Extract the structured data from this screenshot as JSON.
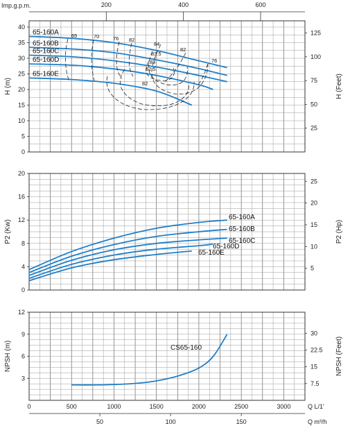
{
  "chart_data": [
    {
      "type": "line",
      "panel": "head",
      "top_axis": {
        "label": "Imp.g.p.m.",
        "ticks": [
          200,
          400,
          600
        ],
        "range": [
          0,
          715
        ]
      },
      "y_left": {
        "label": "H (m)",
        "ticks": [
          0,
          5,
          10,
          15,
          20,
          25,
          30,
          35,
          40
        ],
        "range": [
          0,
          42
        ]
      },
      "y_right": {
        "label": "H (Feet)",
        "ticks": [
          25,
          50,
          75,
          100,
          125
        ],
        "range": [
          0,
          137.8
        ]
      },
      "x_range": [
        0,
        3250
      ],
      "grid": true,
      "series": [
        {
          "name": "65-160A",
          "x": [
            0,
            500,
            1000,
            1500,
            2000,
            2333
          ],
          "y": [
            37,
            36.4,
            35,
            32.5,
            29.2,
            27
          ],
          "color": "#1f7fc9"
        },
        {
          "name": "65-160B",
          "x": [
            0,
            500,
            1000,
            1500,
            2000,
            2333
          ],
          "y": [
            33.5,
            33,
            31.8,
            29.5,
            26.7,
            24.5
          ],
          "color": "#1f7fc9"
        },
        {
          "name": "65-160C",
          "x": [
            0,
            500,
            1000,
            1500,
            2000,
            2333
          ],
          "y": [
            31,
            30.5,
            29.2,
            27.2,
            24.5,
            22.5
          ],
          "color": "#1f7fc9"
        },
        {
          "name": "65-160D",
          "x": [
            0,
            500,
            1000,
            1500,
            2000,
            2167
          ],
          "y": [
            28.2,
            27.8,
            26.6,
            24.5,
            21.5,
            20
          ],
          "color": "#1f7fc9"
        },
        {
          "name": "65-160E",
          "x": [
            0,
            500,
            1000,
            1500,
            1917
          ],
          "y": [
            23.7,
            23.2,
            22,
            19.5,
            15
          ],
          "color": "#1f7fc9"
        }
      ],
      "efficiency_labels": [
        "65",
        "70",
        "76",
        "82",
        "84",
        "83.5",
        "83",
        "82.5",
        "82",
        "82",
        "76"
      ]
    },
    {
      "type": "line",
      "panel": "power",
      "y_left": {
        "label": "P2 (Kw)",
        "ticks": [
          0,
          4,
          8,
          12,
          16,
          20
        ],
        "range": [
          0,
          20
        ]
      },
      "y_right": {
        "label": "P2 (Hp)",
        "ticks": [
          5,
          10,
          15,
          20,
          25
        ],
        "range": [
          0,
          26.8
        ]
      },
      "x_range": [
        0,
        3250
      ],
      "grid": true,
      "series": [
        {
          "name": "65-160A",
          "x": [
            0,
            500,
            1000,
            1500,
            2000,
            2333
          ],
          "y": [
            3.5,
            6.6,
            8.9,
            10.6,
            11.6,
            12.0
          ],
          "color": "#1f7fc9"
        },
        {
          "name": "65-160B",
          "x": [
            0,
            500,
            1000,
            1500,
            2000,
            2333
          ],
          "y": [
            3.0,
            5.8,
            7.8,
            9.2,
            10.0,
            10.4
          ],
          "color": "#1f7fc9"
        },
        {
          "name": "65-160C",
          "x": [
            0,
            500,
            1000,
            1500,
            2000,
            2333
          ],
          "y": [
            2.5,
            5.1,
            6.9,
            8.0,
            8.6,
            8.9
          ],
          "color": "#1f7fc9"
        },
        {
          "name": "65-160D",
          "x": [
            0,
            500,
            1000,
            1500,
            2000,
            2167
          ],
          "y": [
            2.0,
            4.4,
            6.0,
            7.0,
            7.6,
            7.9
          ],
          "color": "#1f7fc9"
        },
        {
          "name": "65-160E",
          "x": [
            0,
            500,
            1000,
            1500,
            1917
          ],
          "y": [
            1.6,
            3.8,
            5.2,
            6.1,
            6.7
          ],
          "color": "#1f7fc9"
        }
      ]
    },
    {
      "type": "line",
      "panel": "npsh",
      "y_left": {
        "label": "NPSH (m)",
        "ticks": [
          3,
          6,
          9,
          12
        ],
        "range": [
          0,
          12
        ]
      },
      "y_right": {
        "label": "NPSH (Feet)",
        "ticks": [
          "7.5",
          "15",
          "22.5",
          "30"
        ],
        "range": [
          0,
          39.4
        ]
      },
      "x_bottom": {
        "label": "Q  L/1'",
        "ticks": [
          500,
          1000,
          1500,
          2000,
          2500,
          3000
        ],
        "extra_tick": "0",
        "range": [
          0,
          3250
        ]
      },
      "x_bottom2": {
        "label": "Q  m³/h",
        "ticks": [
          50,
          100,
          150
        ],
        "range": [
          0,
          195
        ]
      },
      "grid": true,
      "series": [
        {
          "name": "CS65-160",
          "x": [
            500,
            800,
            1000,
            1250,
            1500,
            1750,
            2000,
            2170,
            2333
          ],
          "y": [
            2.1,
            2.1,
            2.15,
            2.3,
            2.65,
            3.3,
            4.4,
            6.0,
            9.0
          ],
          "color": "#1f7fc9"
        }
      ]
    }
  ]
}
